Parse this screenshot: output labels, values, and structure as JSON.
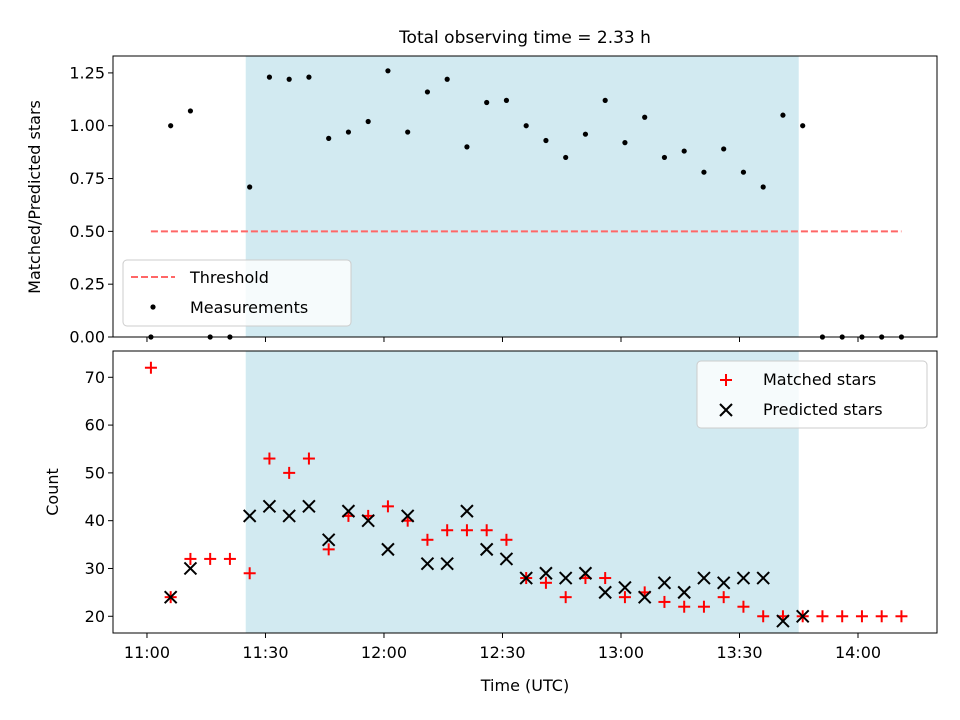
{
  "title": "Total observing time = 2.33 h",
  "colors": {
    "shade": "#add8e6",
    "threshold": "#ff6666",
    "matched": "#ff0000",
    "predicted": "#000000",
    "measurements": "#000000"
  },
  "chart_data": [
    {
      "type": "scatter",
      "ylabel": "Matched/Predicted stars",
      "ylim": [
        0,
        1.33
      ],
      "yticks": [
        0,
        0.25,
        0.5,
        0.75,
        1.0,
        1.25
      ],
      "ytick_labels": [
        "0.00",
        "0.25",
        "0.50",
        "0.75",
        "1.00",
        "1.25"
      ],
      "xlim": [
        -8.6,
        200
      ],
      "shaded_region": [
        25,
        165
      ],
      "legend": {
        "position": "lower-left",
        "entries": [
          "Threshold",
          "Measurements"
        ]
      },
      "threshold": {
        "name": "Threshold",
        "x": [
          1,
          191
        ],
        "y": 0.5
      },
      "series": [
        {
          "name": "Measurements",
          "x": [
            1,
            6,
            11,
            16,
            21,
            26,
            31,
            36,
            41,
            46,
            51,
            56,
            61,
            66,
            71,
            76,
            81,
            86,
            91,
            96,
            101,
            106,
            111,
            116,
            121,
            126,
            131,
            136,
            141,
            146,
            151,
            156,
            161,
            166,
            171,
            176,
            181,
            186,
            191
          ],
          "y": [
            0,
            1.0,
            1.07,
            0,
            0,
            0.71,
            1.23,
            1.22,
            1.23,
            0.94,
            0.97,
            1.02,
            1.26,
            0.97,
            1.16,
            1.22,
            0.9,
            1.11,
            1.12,
            1.0,
            0.93,
            0.85,
            0.96,
            1.12,
            0.92,
            1.04,
            0.85,
            0.88,
            0.78,
            0.89,
            0.78,
            0.71,
            1.05,
            1.0,
            0,
            0,
            0,
            0,
            0
          ]
        }
      ]
    },
    {
      "type": "scatter",
      "ylabel": "Count",
      "xlabel": "Time (UTC)",
      "ylim": [
        16.5,
        75.5
      ],
      "yticks": [
        20,
        30,
        40,
        50,
        60,
        70
      ],
      "ytick_labels": [
        "20",
        "30",
        "40",
        "50",
        "60",
        "70"
      ],
      "xlim": [
        -8.6,
        200
      ],
      "xticks": [
        0,
        30,
        60,
        90,
        120,
        150,
        180
      ],
      "xtick_labels": [
        "11:00",
        "11:30",
        "12:00",
        "12:30",
        "13:00",
        "13:30",
        "14:00"
      ],
      "shaded_region": [
        25,
        165
      ],
      "legend": {
        "position": "upper-right",
        "entries": [
          "Matched stars",
          "Predicted stars"
        ]
      },
      "series": [
        {
          "name": "Matched stars",
          "marker": "+",
          "x": [
            1,
            6,
            11,
            16,
            21,
            26,
            31,
            36,
            41,
            46,
            51,
            56,
            61,
            66,
            71,
            76,
            81,
            86,
            91,
            96,
            101,
            106,
            111,
            116,
            121,
            126,
            131,
            136,
            141,
            146,
            151,
            156,
            161,
            166,
            171,
            176,
            181,
            186,
            191
          ],
          "y": [
            72,
            24,
            32,
            32,
            32,
            29,
            53,
            50,
            53,
            34,
            41,
            41,
            43,
            40,
            36,
            38,
            38,
            38,
            36,
            28,
            27,
            24,
            28,
            28,
            24,
            25,
            23,
            22,
            22,
            24,
            22,
            20,
            20,
            20,
            20,
            20,
            20,
            20,
            20
          ]
        },
        {
          "name": "Predicted stars",
          "marker": "x",
          "x": [
            6,
            11,
            26,
            31,
            36,
            41,
            46,
            51,
            56,
            61,
            66,
            71,
            76,
            81,
            86,
            91,
            96,
            101,
            106,
            111,
            116,
            121,
            126,
            131,
            136,
            141,
            146,
            151,
            156,
            161,
            166
          ],
          "y": [
            24,
            30,
            41,
            43,
            41,
            43,
            36,
            42,
            40,
            34,
            41,
            31,
            31,
            42,
            34,
            32,
            28,
            29,
            28,
            29,
            25,
            26,
            24,
            27,
            25,
            28,
            27,
            28,
            28,
            19,
            20
          ]
        }
      ]
    }
  ]
}
